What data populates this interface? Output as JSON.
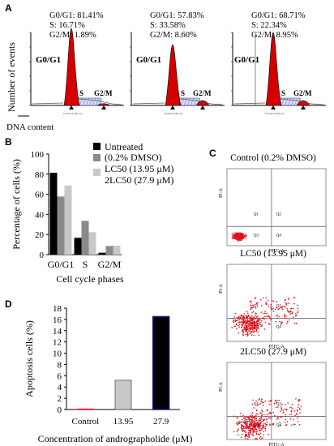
{
  "panel_labels": {
    "a": "A",
    "b": "B",
    "c": "C",
    "d": "D"
  },
  "panel_a": {
    "y_axis_label": "Number of events",
    "x_axis_label": "DNA content",
    "channel_label": "Channels (PI-A)",
    "histograms": [
      {
        "stats": [
          "G0/G1: 81.41%",
          "S: 16.71%",
          "G2/M: 1.89%"
        ],
        "labels": {
          "g0": "G0/G1",
          "s": "S",
          "g2": "G2/M"
        }
      },
      {
        "stats": [
          "G0/G1: 57.83%",
          "S: 33.58%",
          "G2/M: 8.60%"
        ],
        "labels": {
          "g0": "G0/G1",
          "s": "S",
          "g2": "G2/M"
        }
      },
      {
        "stats": [
          "G0/G1: 68.71%",
          "S: 22.34%",
          "G2/M: 8.95%"
        ],
        "labels": {
          "g0": "G0/G1",
          "s": "S",
          "g2": "G2/M"
        }
      }
    ]
  },
  "panel_c": {
    "plots": [
      {
        "title": "Control (0.2% DMSO)",
        "ylabel": "PI-A",
        "xlabel": "FITC-A",
        "quadrants": [
          "Q1",
          "Q2",
          "Q3",
          "Q4"
        ]
      },
      {
        "title": "LC50 (13.95 μM)",
        "ylabel": "PI-A",
        "xlabel": "FITC-A",
        "quadrants": [
          "Q1",
          "Q2",
          "Q3",
          "Q4"
        ]
      },
      {
        "title": "2LC50 (27.9 μM)",
        "ylabel": "PI-A",
        "xlabel": "FITC-A",
        "quadrants": [
          "Q1",
          "Q2",
          "Q3",
          "Q4"
        ]
      }
    ]
  },
  "colors": {
    "histogram_fill": "#d40000",
    "dot_color": "#e0101a",
    "bar_black": "#000000",
    "bar_dark_gray": "#8a8a8a",
    "bar_light_gray": "#c8c8c8",
    "bar_outline_blue": "#1a1a8c"
  },
  "chart_data": [
    {
      "type": "bar",
      "ylabel": "Percentage of cells (%)",
      "xlabel": "Cell cycle phases",
      "ylim": [
        0,
        100
      ],
      "yticks": [
        "0",
        "20",
        "40",
        "60",
        "80",
        "100"
      ],
      "categories": [
        "G0/G1",
        "S",
        "G2/M"
      ],
      "series": [
        {
          "name": "Untreated (0.2% DMSO)",
          "values": [
            81.41,
            16.71,
            1.89
          ]
        },
        {
          "name": "LC50 (13.95 μM)",
          "values": [
            57.83,
            33.58,
            8.6
          ]
        },
        {
          "name": "2LC50 (27.9 μM)",
          "values": [
            68.71,
            22.34,
            8.95
          ]
        }
      ],
      "legend_position": "top-right"
    },
    {
      "type": "bar",
      "ylabel": "Apoptosis cells (%)",
      "xlabel": "Concentration of andrographolide (μM)",
      "ylim": [
        0,
        18
      ],
      "yticks": [
        "0",
        "2",
        "4",
        "6",
        "8",
        "10",
        "12",
        "14",
        "16",
        "18"
      ],
      "categories": [
        "Control",
        "13.95",
        "27.9"
      ],
      "values": [
        0.1,
        5.2,
        16.5
      ]
    }
  ]
}
